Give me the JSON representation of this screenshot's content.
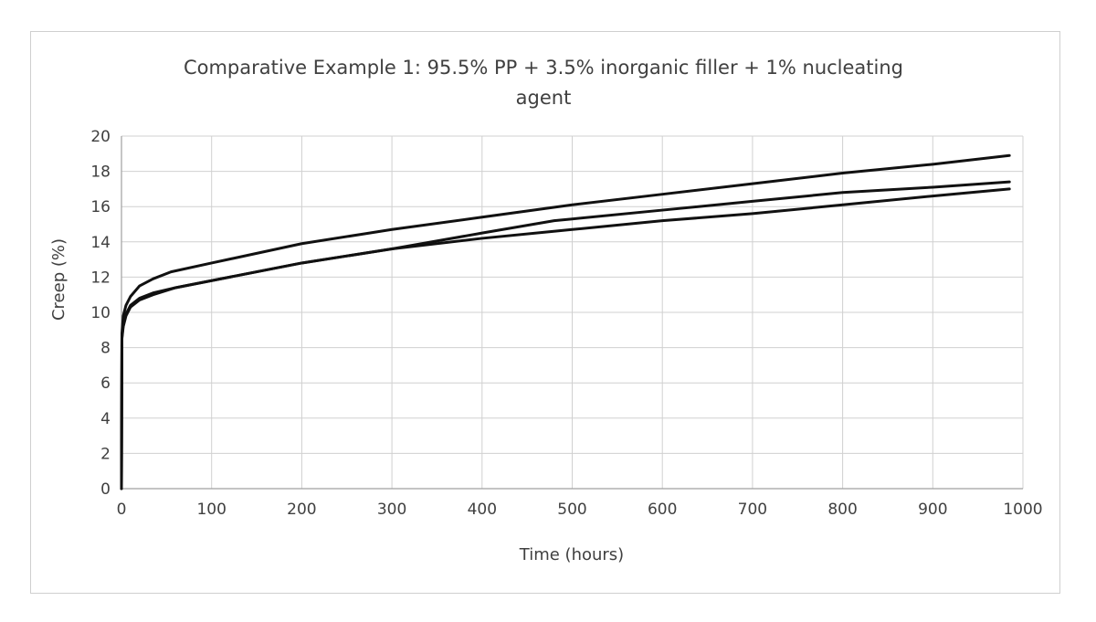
{
  "chart_data": {
    "type": "line",
    "title": "Comparative Example 1: 95.5% PP + 3.5% inorganic filler  + 1% nucleating agent",
    "title_lines": [
      "Comparative Example 1: 95.5% PP + 3.5% inorganic filler  + 1% nucleating",
      "agent"
    ],
    "xlabel": "Time (hours)",
    "ylabel": "Creep (%)",
    "xlim": [
      0,
      1000
    ],
    "ylim": [
      0,
      20
    ],
    "x_ticks": [
      0,
      100,
      200,
      300,
      400,
      500,
      600,
      700,
      800,
      900,
      1000
    ],
    "y_ticks": [
      0,
      2,
      4,
      6,
      8,
      10,
      12,
      14,
      16,
      18,
      20
    ],
    "grid": true,
    "legend": "none",
    "series": [
      {
        "color": "#111111",
        "x": [
          0,
          0.5,
          2,
          5,
          10,
          20,
          35,
          55,
          100,
          200,
          300,
          400,
          500,
          600,
          700,
          800,
          900,
          985
        ],
        "y": [
          0,
          8.8,
          9.8,
          10.4,
          10.9,
          11.5,
          11.9,
          12.3,
          12.8,
          13.9,
          14.7,
          15.4,
          16.1,
          16.7,
          17.3,
          17.9,
          18.4,
          18.9
        ]
      },
      {
        "color": "#111111",
        "x": [
          0,
          0.5,
          2,
          5,
          10,
          20,
          35,
          60,
          100,
          200,
          300,
          400,
          480,
          500,
          600,
          700,
          800,
          900,
          985
        ],
        "y": [
          0,
          8.5,
          9.2,
          9.8,
          10.3,
          10.7,
          11.0,
          11.4,
          11.8,
          12.8,
          13.6,
          14.5,
          15.2,
          15.3,
          15.8,
          16.3,
          16.8,
          17.1,
          17.4
        ]
      },
      {
        "color": "#111111",
        "x": [
          0,
          0.5,
          2,
          5,
          10,
          20,
          35,
          60,
          100,
          200,
          300,
          400,
          500,
          600,
          700,
          800,
          900,
          985
        ],
        "y": [
          0,
          8.6,
          9.3,
          9.9,
          10.4,
          10.8,
          11.1,
          11.4,
          11.8,
          12.8,
          13.6,
          14.2,
          14.7,
          15.2,
          15.6,
          16.1,
          16.6,
          17.0
        ]
      }
    ]
  }
}
